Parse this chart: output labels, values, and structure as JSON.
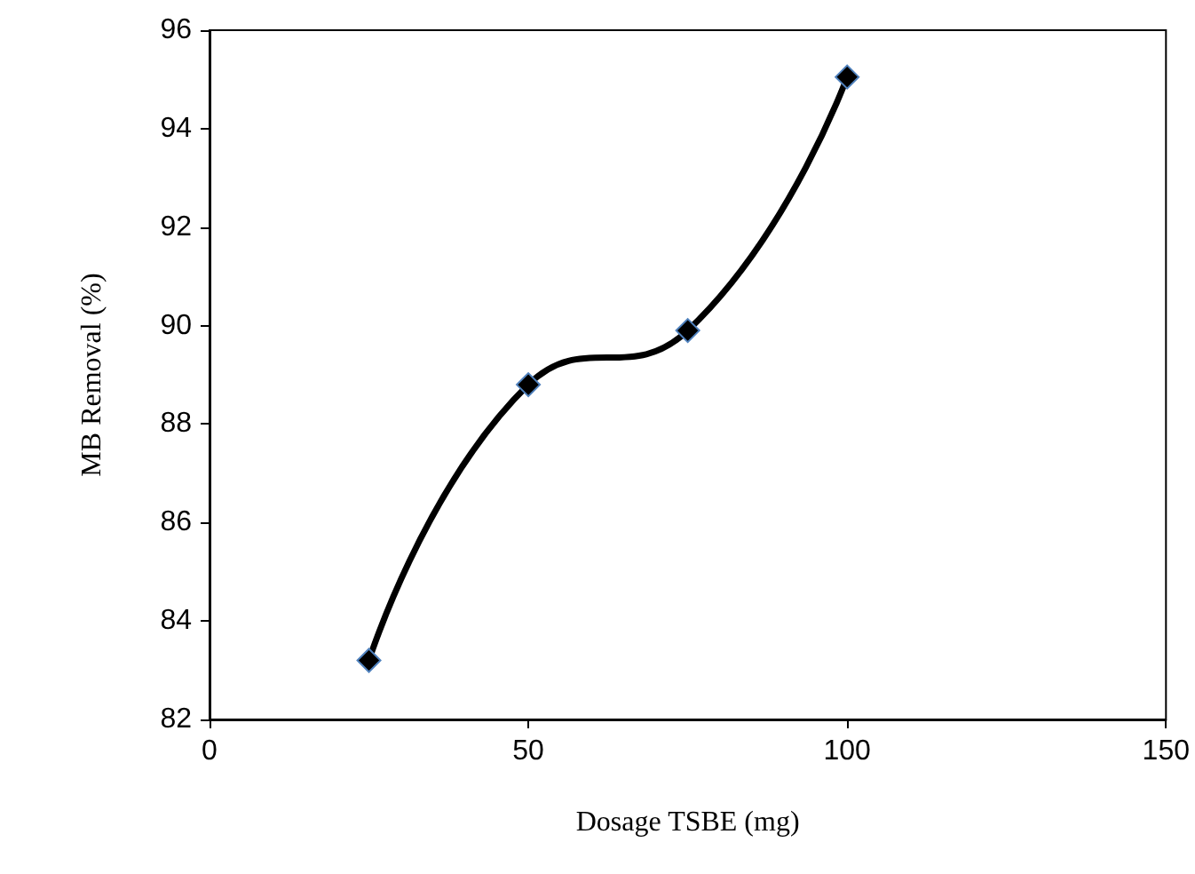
{
  "chart_data": {
    "type": "line",
    "xlabel": "Dosage TSBE (mg)",
    "ylabel": "MB Removal (%)",
    "x": [
      25,
      50,
      75,
      100
    ],
    "series": [
      {
        "color": "#000000",
        "values": [
          83.2,
          88.8,
          89.9,
          95.05
        ]
      }
    ],
    "xlim": [
      0,
      150
    ],
    "xticks": [
      0,
      50,
      100,
      150
    ],
    "ylim": [
      82,
      96
    ],
    "yticks": [
      82,
      84,
      86,
      88,
      90,
      92,
      94,
      96
    ],
    "grid": false,
    "marker": "diamond",
    "line_style": "solid"
  }
}
